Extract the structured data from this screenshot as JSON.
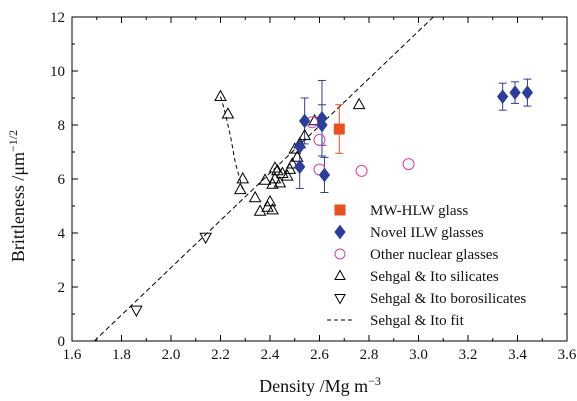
{
  "chart_data": {
    "type": "scatter",
    "xlabel": "Density /Mg m",
    "xlabel_sup": "−3",
    "ylabel": "Brittleness /μm",
    "ylabel_sup": "−1/2",
    "xlim": [
      1.6,
      3.6
    ],
    "ylim": [
      0,
      12
    ],
    "xticks": [
      1.6,
      1.8,
      2.0,
      2.2,
      2.4,
      2.6,
      2.8,
      3.0,
      3.2,
      3.4,
      3.6
    ],
    "xtick_labels": [
      "1.6",
      "1.8",
      "2.0",
      "2.2",
      "2.4",
      "2.6",
      "2.8",
      "3.0",
      "3.2",
      "3.4",
      "3.6"
    ],
    "yticks": [
      0,
      2,
      4,
      6,
      8,
      10,
      12
    ],
    "ytick_labels": [
      "0",
      "2",
      "4",
      "6",
      "8",
      "10",
      "12"
    ],
    "grid": false,
    "legend_position": "lower-right",
    "series": [
      {
        "name": "MW-HLW glass",
        "marker": "square",
        "color": "#e8501e",
        "points": [
          {
            "x": 2.68,
            "y": 7.85,
            "err": 0.9
          }
        ]
      },
      {
        "name": "Novel ILW glasses",
        "marker": "diamond",
        "color": "#2c3d9c",
        "points": [
          {
            "x": 2.52,
            "y": 6.45,
            "err": 0.8
          },
          {
            "x": 2.52,
            "y": 7.2,
            "err": 0
          },
          {
            "x": 2.54,
            "y": 8.15,
            "err": 0.85
          },
          {
            "x": 2.61,
            "y": 8.25,
            "err": 1.4
          },
          {
            "x": 2.61,
            "y": 8.0,
            "err": 0.75
          },
          {
            "x": 2.62,
            "y": 6.15,
            "err": 0.65
          },
          {
            "x": 3.34,
            "y": 9.05,
            "err": 0.5
          },
          {
            "x": 3.39,
            "y": 9.2,
            "err": 0.4
          },
          {
            "x": 3.44,
            "y": 9.2,
            "err": 0.5
          }
        ]
      },
      {
        "name": "Other nuclear glasses",
        "marker": "circle-open",
        "color": "#d63fa0",
        "points": [
          {
            "x": 2.57,
            "y": 8.1
          },
          {
            "x": 2.6,
            "y": 7.45
          },
          {
            "x": 2.6,
            "y": 6.35
          },
          {
            "x": 2.77,
            "y": 6.3
          },
          {
            "x": 2.96,
            "y": 6.55
          }
        ]
      },
      {
        "name": "Sehgal & Ito silicates",
        "marker": "triangle-up-open",
        "color": "#000000",
        "points": [
          {
            "x": 2.2,
            "y": 9.05
          },
          {
            "x": 2.23,
            "y": 8.4
          },
          {
            "x": 2.28,
            "y": 5.6
          },
          {
            "x": 2.29,
            "y": 6.0
          },
          {
            "x": 2.34,
            "y": 5.3
          },
          {
            "x": 2.36,
            "y": 4.8
          },
          {
            "x": 2.38,
            "y": 5.95
          },
          {
            "x": 2.39,
            "y": 4.95
          },
          {
            "x": 2.4,
            "y": 5.15
          },
          {
            "x": 2.41,
            "y": 5.8
          },
          {
            "x": 2.41,
            "y": 4.85
          },
          {
            "x": 2.42,
            "y": 6.4
          },
          {
            "x": 2.42,
            "y": 6.0
          },
          {
            "x": 2.43,
            "y": 6.3
          },
          {
            "x": 2.44,
            "y": 5.85
          },
          {
            "x": 2.45,
            "y": 6.2
          },
          {
            "x": 2.47,
            "y": 6.1
          },
          {
            "x": 2.48,
            "y": 6.35
          },
          {
            "x": 2.49,
            "y": 6.55
          },
          {
            "x": 2.5,
            "y": 7.1
          },
          {
            "x": 2.51,
            "y": 6.8
          },
          {
            "x": 2.52,
            "y": 7.3
          },
          {
            "x": 2.54,
            "y": 7.6
          },
          {
            "x": 2.58,
            "y": 8.15
          },
          {
            "x": 2.76,
            "y": 8.75
          }
        ]
      },
      {
        "name": "Sehgal & Ito borosilicates",
        "marker": "triangle-down-open",
        "color": "#000000",
        "points": [
          {
            "x": 1.86,
            "y": 1.15
          },
          {
            "x": 2.14,
            "y": 3.85
          }
        ]
      },
      {
        "name": "Sehgal & Ito fit",
        "marker": "dashed-line",
        "color": "#000000",
        "points": [
          {
            "x": 1.69,
            "y": 0
          },
          {
            "x": 3.06,
            "y": 12
          }
        ]
      }
    ],
    "curve": [
      {
        "x": 2.2,
        "y": 9.05
      },
      {
        "x": 2.215,
        "y": 8.6
      },
      {
        "x": 2.24,
        "y": 7.6
      },
      {
        "x": 2.26,
        "y": 6.6
      },
      {
        "x": 2.29,
        "y": 5.6
      }
    ]
  }
}
